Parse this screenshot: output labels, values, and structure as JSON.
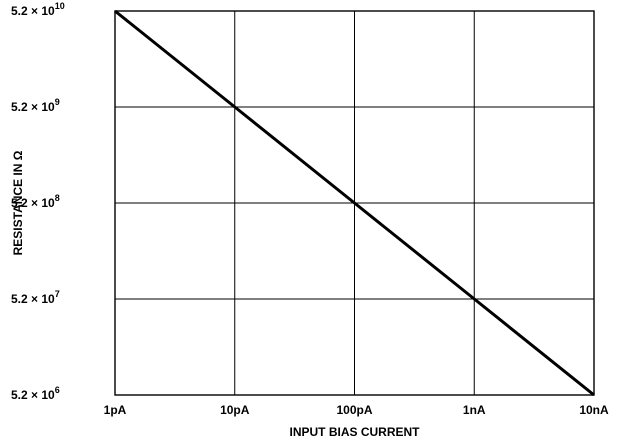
{
  "chart_data": {
    "type": "line",
    "title": "",
    "xlabel": "INPUT BIAS CURRENT",
    "ylabel": "RESISTANCE IN Ω",
    "x_scale": "log",
    "y_scale": "log",
    "x_ticks": [
      "1pA",
      "10pA",
      "100pA",
      "1nA",
      "10nA"
    ],
    "y_ticks": [
      {
        "mantissa": "5.2 × 10",
        "exponent": "6"
      },
      {
        "mantissa": "5.2 × 10",
        "exponent": "7"
      },
      {
        "mantissa": "5.2 × 10",
        "exponent": "8"
      },
      {
        "mantissa": "5.2 × 10",
        "exponent": "9"
      },
      {
        "mantissa": "5.2 × 10",
        "exponent": "10"
      }
    ],
    "xlim": [
      "1pA",
      "10nA"
    ],
    "ylim": [
      5200000.0,
      52000000000.0
    ],
    "grid": true,
    "series": [
      {
        "x": [
          "1pA",
          "10pA",
          "100pA",
          "1nA",
          "10nA"
        ],
        "y": [
          52000000000.0,
          5200000000.0,
          520000000.0,
          52000000.0,
          5200000.0
        ]
      }
    ],
    "colors": {
      "line": "#000000",
      "grid": "#000000"
    }
  }
}
